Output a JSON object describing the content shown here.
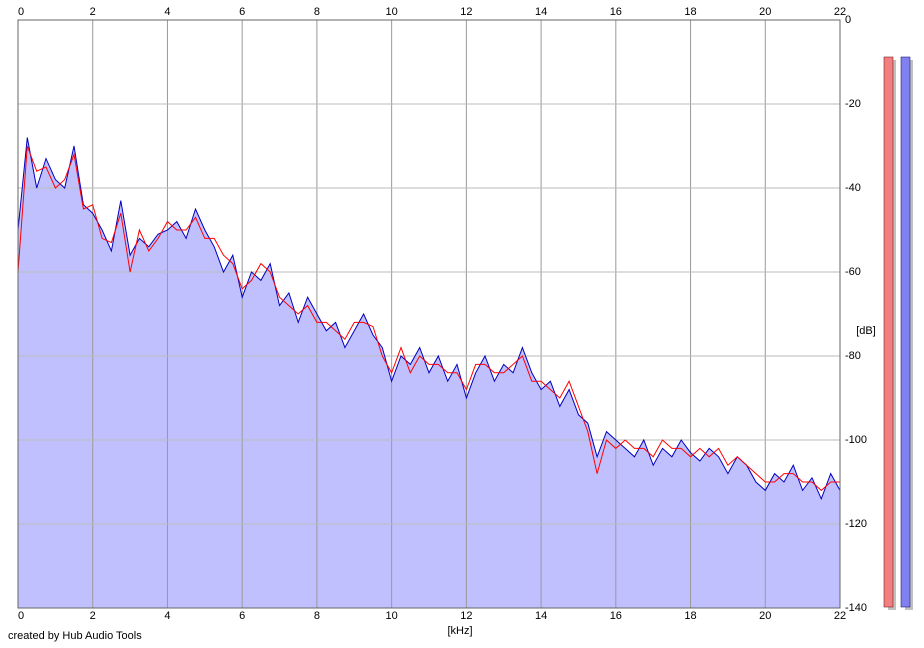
{
  "chart_data": {
    "type": "line",
    "x_label": "[kHz]",
    "y_label": "[dB]",
    "credit": "created by Hub Audio Tools",
    "x": [
      0,
      0.25,
      0.5,
      0.75,
      1,
      1.25,
      1.5,
      1.75,
      2,
      2.25,
      2.5,
      2.75,
      3,
      3.25,
      3.5,
      3.75,
      4,
      4.25,
      4.5,
      4.75,
      5,
      5.25,
      5.5,
      5.75,
      6,
      6.25,
      6.5,
      6.75,
      7,
      7.25,
      7.5,
      7.75,
      8,
      8.25,
      8.5,
      8.75,
      9,
      9.25,
      9.5,
      9.75,
      10,
      10.25,
      10.5,
      10.75,
      11,
      11.25,
      11.5,
      11.75,
      12,
      12.25,
      12.5,
      12.75,
      13,
      13.25,
      13.5,
      13.75,
      14,
      14.25,
      14.5,
      14.75,
      15,
      15.25,
      15.5,
      15.75,
      16,
      16.25,
      16.5,
      16.75,
      17,
      17.25,
      17.5,
      17.75,
      18,
      18.25,
      18.5,
      18.75,
      19,
      19.25,
      19.5,
      19.75,
      20,
      20.25,
      20.5,
      20.75,
      21,
      21.25,
      21.5,
      21.75,
      22
    ],
    "series": [
      {
        "color": "#ff0000",
        "values": [
          -60,
          -30,
          -36,
          -35,
          -40,
          -38,
          -32,
          -45,
          -44,
          -52,
          -53,
          -46,
          -60,
          -50,
          -55,
          -52,
          -48,
          -50,
          -50,
          -47,
          -52,
          -52,
          -56,
          -58,
          -64,
          -62,
          -58,
          -60,
          -66,
          -68,
          -70,
          -68,
          -72,
          -72,
          -74,
          -76,
          -72,
          -72,
          -73,
          -80,
          -84,
          -78,
          -84,
          -80,
          -82,
          -82,
          -84,
          -84,
          -88,
          -82,
          -82,
          -84,
          -84,
          -82,
          -80,
          -86,
          -86,
          -88,
          -90,
          -86,
          -92,
          -98,
          -108,
          -100,
          -102,
          -100,
          -102,
          -102,
          -104,
          -100,
          -102,
          -102,
          -104,
          -102,
          -104,
          -102,
          -106,
          -104,
          -106,
          -108,
          -110,
          -110,
          -108,
          -108,
          -110,
          -110,
          -112,
          -110,
          -110
        ]
      },
      {
        "color": "#0000c0",
        "fill": "#c0c0ff",
        "values": [
          -50,
          -28,
          -40,
          -33,
          -38,
          -40,
          -30,
          -44,
          -46,
          -50,
          -55,
          -43,
          -56,
          -52,
          -54,
          -51,
          -50,
          -48,
          -52,
          -45,
          -50,
          -54,
          -60,
          -56,
          -66,
          -60,
          -62,
          -58,
          -68,
          -65,
          -72,
          -66,
          -70,
          -74,
          -72,
          -78,
          -74,
          -70,
          -75,
          -78,
          -86,
          -80,
          -82,
          -78,
          -84,
          -80,
          -86,
          -82,
          -90,
          -84,
          -80,
          -86,
          -82,
          -84,
          -78,
          -84,
          -88,
          -86,
          -92,
          -88,
          -94,
          -96,
          -104,
          -98,
          -100,
          -102,
          -104,
          -100,
          -106,
          -102,
          -104,
          -100,
          -103,
          -105,
          -102,
          -104,
          -108,
          -104,
          -106,
          -110,
          -112,
          -108,
          -110,
          -106,
          -112,
          -109,
          -114,
          -108,
          -112
        ]
      }
    ],
    "xlim": [
      0,
      22
    ],
    "xticks": [
      0,
      2,
      4,
      6,
      8,
      10,
      12,
      14,
      16,
      18,
      20,
      22
    ],
    "ylim": [
      -140,
      0
    ],
    "yticks": [
      0,
      -20,
      -40,
      -60,
      -80,
      -100,
      -120,
      -140
    ],
    "grid": true
  }
}
